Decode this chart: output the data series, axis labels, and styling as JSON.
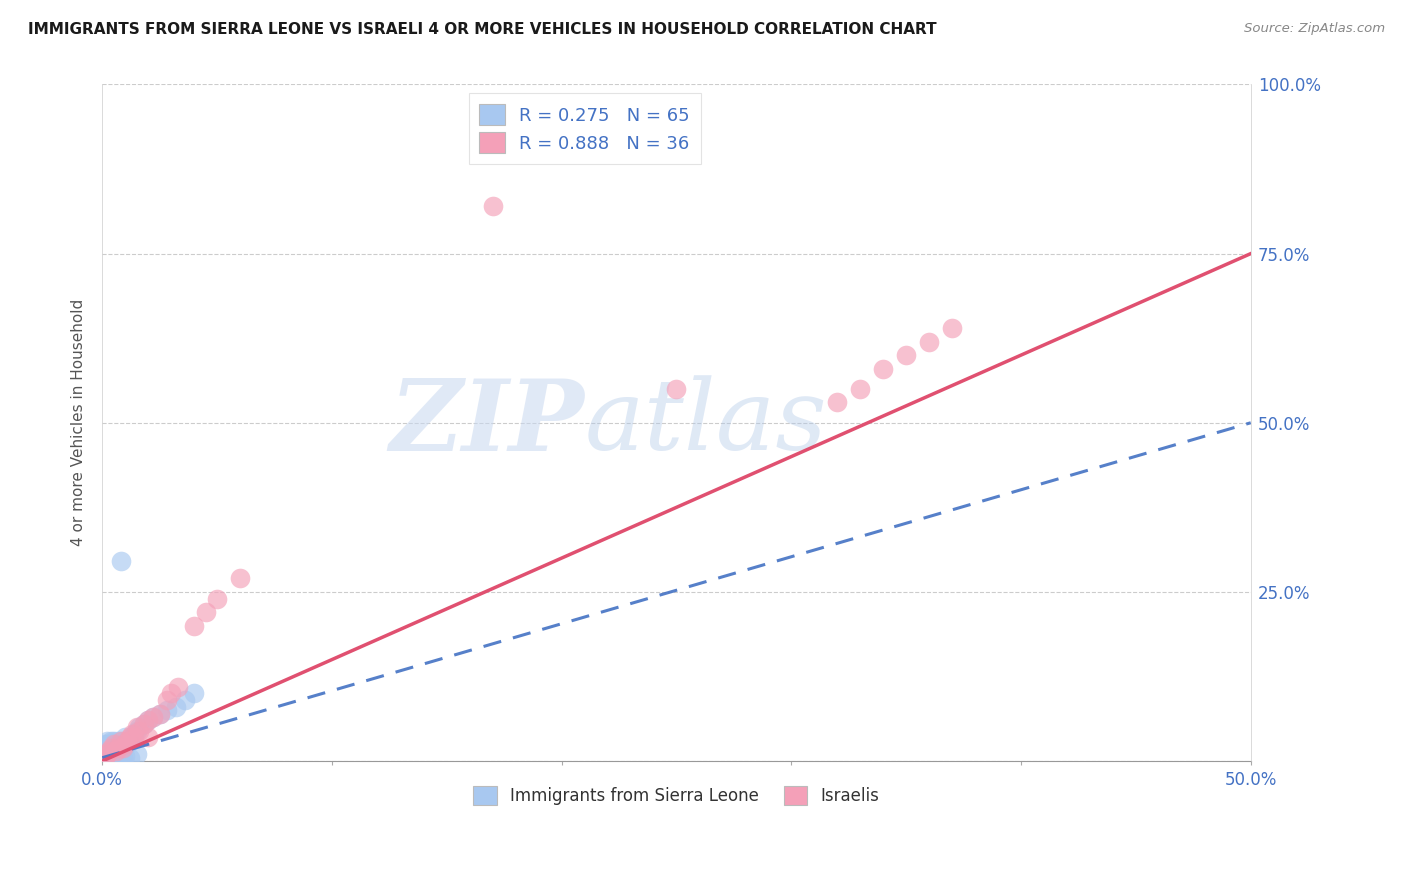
{
  "title": "IMMIGRANTS FROM SIERRA LEONE VS ISRAELI 4 OR MORE VEHICLES IN HOUSEHOLD CORRELATION CHART",
  "source": "Source: ZipAtlas.com",
  "ylabel_label": "4 or more Vehicles in Household",
  "xlim": [
    0.0,
    0.5
  ],
  "ylim": [
    0.0,
    1.0
  ],
  "xtick_positions": [
    0.0,
    0.1,
    0.2,
    0.3,
    0.4,
    0.5
  ],
  "xtick_labels": [
    "0.0%",
    "",
    "",
    "",
    "",
    "50.0%"
  ],
  "ytick_positions": [
    0.0,
    0.25,
    0.5,
    0.75,
    1.0
  ],
  "ytick_labels_right": [
    "",
    "25.0%",
    "50.0%",
    "75.0%",
    "100.0%"
  ],
  "blue_color": "#a8c8f0",
  "pink_color": "#f4a0b8",
  "blue_line_color": "#4472c4",
  "pink_line_color": "#e05070",
  "blue_R": 0.275,
  "blue_N": 65,
  "pink_R": 0.888,
  "pink_N": 36,
  "legend_label_blue": "Immigrants from Sierra Leone",
  "legend_label_pink": "Israelis",
  "watermark_zip": "ZIP",
  "watermark_atlas": "atlas",
  "blue_line_x": [
    0.0,
    0.5
  ],
  "blue_line_y": [
    0.005,
    0.5
  ],
  "pink_line_x": [
    0.0,
    0.5
  ],
  "pink_line_y": [
    0.0,
    0.75
  ],
  "blue_pts_x": [
    0.001,
    0.001,
    0.001,
    0.001,
    0.001,
    0.001,
    0.002,
    0.002,
    0.002,
    0.002,
    0.002,
    0.003,
    0.003,
    0.003,
    0.003,
    0.004,
    0.004,
    0.004,
    0.004,
    0.005,
    0.005,
    0.005,
    0.005,
    0.006,
    0.006,
    0.006,
    0.007,
    0.007,
    0.007,
    0.008,
    0.008,
    0.009,
    0.009,
    0.01,
    0.01,
    0.011,
    0.012,
    0.013,
    0.014,
    0.015,
    0.016,
    0.018,
    0.02,
    0.022,
    0.025,
    0.028,
    0.032,
    0.036,
    0.04,
    0.001,
    0.001,
    0.002,
    0.002,
    0.003,
    0.003,
    0.004,
    0.005,
    0.006,
    0.007,
    0.008,
    0.009,
    0.01,
    0.012,
    0.015,
    0.008
  ],
  "blue_pts_y": [
    0.005,
    0.01,
    0.015,
    0.02,
    0.025,
    0.008,
    0.01,
    0.015,
    0.02,
    0.025,
    0.03,
    0.005,
    0.01,
    0.02,
    0.025,
    0.01,
    0.015,
    0.02,
    0.03,
    0.01,
    0.015,
    0.02,
    0.03,
    0.01,
    0.015,
    0.025,
    0.015,
    0.02,
    0.03,
    0.02,
    0.025,
    0.02,
    0.03,
    0.025,
    0.035,
    0.025,
    0.03,
    0.035,
    0.04,
    0.045,
    0.05,
    0.055,
    0.06,
    0.065,
    0.07,
    0.075,
    0.08,
    0.09,
    0.1,
    0.003,
    0.007,
    0.003,
    0.008,
    0.004,
    0.012,
    0.005,
    0.003,
    0.005,
    0.007,
    0.003,
    0.005,
    0.008,
    0.005,
    0.01,
    0.295
  ],
  "pink_pts_x": [
    0.001,
    0.002,
    0.003,
    0.004,
    0.005,
    0.006,
    0.007,
    0.008,
    0.009,
    0.01,
    0.011,
    0.012,
    0.013,
    0.014,
    0.015,
    0.016,
    0.018,
    0.02,
    0.022,
    0.025,
    0.028,
    0.03,
    0.033,
    0.04,
    0.045,
    0.05,
    0.06,
    0.17,
    0.32,
    0.33,
    0.34,
    0.35,
    0.36,
    0.37,
    0.25,
    0.02
  ],
  "pink_pts_y": [
    0.005,
    0.01,
    0.015,
    0.02,
    0.025,
    0.015,
    0.02,
    0.03,
    0.02,
    0.025,
    0.03,
    0.035,
    0.04,
    0.035,
    0.05,
    0.045,
    0.055,
    0.06,
    0.065,
    0.07,
    0.09,
    0.1,
    0.11,
    0.2,
    0.22,
    0.24,
    0.27,
    0.82,
    0.53,
    0.55,
    0.58,
    0.6,
    0.62,
    0.64,
    0.55,
    0.035
  ]
}
